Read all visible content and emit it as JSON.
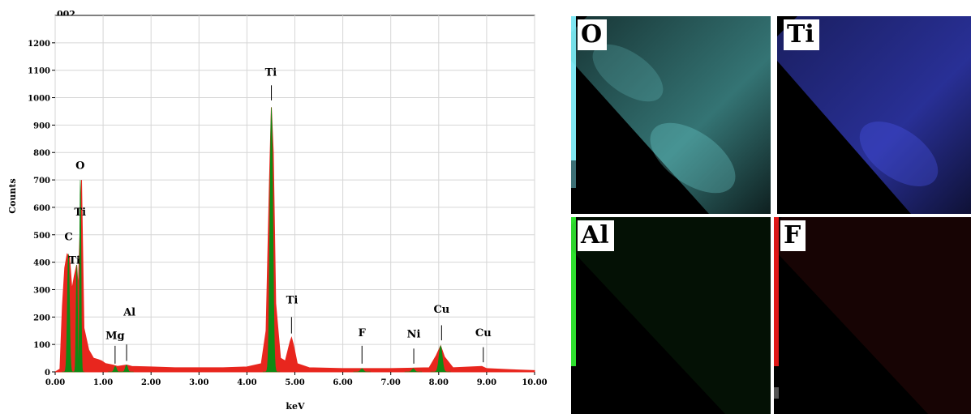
{
  "chart_data": {
    "type": "line",
    "title": "002",
    "xlabel": "keV",
    "ylabel": "Counts",
    "xlim": [
      0,
      10
    ],
    "ylim": [
      0,
      1300
    ],
    "xticks": [
      "0.00",
      "1.00",
      "2.00",
      "3.00",
      "4.00",
      "5.00",
      "6.00",
      "7.00",
      "8.00",
      "9.00",
      "10.00"
    ],
    "yticks": [
      "0",
      "100",
      "200",
      "300",
      "400",
      "500",
      "600",
      "700",
      "800",
      "900",
      "1000",
      "1100",
      "1200"
    ],
    "grid": true,
    "spectrum_color": "#e8261e",
    "peak_color": "#0f8a14",
    "spectrum": [
      {
        "x": 0.0,
        "y": 0
      },
      {
        "x": 0.1,
        "y": 10
      },
      {
        "x": 0.15,
        "y": 240
      },
      {
        "x": 0.2,
        "y": 380
      },
      {
        "x": 0.25,
        "y": 430
      },
      {
        "x": 0.3,
        "y": 420
      },
      {
        "x": 0.35,
        "y": 300
      },
      {
        "x": 0.4,
        "y": 350
      },
      {
        "x": 0.45,
        "y": 390
      },
      {
        "x": 0.48,
        "y": 300
      },
      {
        "x": 0.52,
        "y": 520
      },
      {
        "x": 0.55,
        "y": 700
      },
      {
        "x": 0.6,
        "y": 160
      },
      {
        "x": 0.7,
        "y": 80
      },
      {
        "x": 0.8,
        "y": 50
      },
      {
        "x": 0.9,
        "y": 45
      },
      {
        "x": 0.97,
        "y": 40
      },
      {
        "x": 1.05,
        "y": 30
      },
      {
        "x": 1.2,
        "y": 25
      },
      {
        "x": 1.3,
        "y": 20
      },
      {
        "x": 1.49,
        "y": 25
      },
      {
        "x": 1.6,
        "y": 20
      },
      {
        "x": 2.0,
        "y": 18
      },
      {
        "x": 2.5,
        "y": 15
      },
      {
        "x": 3.0,
        "y": 15
      },
      {
        "x": 3.5,
        "y": 15
      },
      {
        "x": 4.0,
        "y": 18
      },
      {
        "x": 4.3,
        "y": 30
      },
      {
        "x": 4.4,
        "y": 150
      },
      {
        "x": 4.47,
        "y": 700
      },
      {
        "x": 4.51,
        "y": 965
      },
      {
        "x": 4.55,
        "y": 800
      },
      {
        "x": 4.6,
        "y": 250
      },
      {
        "x": 4.7,
        "y": 50
      },
      {
        "x": 4.8,
        "y": 40
      },
      {
        "x": 4.9,
        "y": 110
      },
      {
        "x": 4.93,
        "y": 125
      },
      {
        "x": 4.97,
        "y": 100
      },
      {
        "x": 5.05,
        "y": 30
      },
      {
        "x": 5.3,
        "y": 15
      },
      {
        "x": 6.0,
        "y": 12
      },
      {
        "x": 6.5,
        "y": 12
      },
      {
        "x": 7.0,
        "y": 12
      },
      {
        "x": 7.48,
        "y": 14
      },
      {
        "x": 7.8,
        "y": 15
      },
      {
        "x": 7.95,
        "y": 60
      },
      {
        "x": 8.04,
        "y": 95
      },
      {
        "x": 8.12,
        "y": 55
      },
      {
        "x": 8.3,
        "y": 15
      },
      {
        "x": 8.9,
        "y": 20
      },
      {
        "x": 9.0,
        "y": 12
      },
      {
        "x": 9.5,
        "y": 8
      },
      {
        "x": 10.0,
        "y": 5
      }
    ],
    "peaks": [
      {
        "element": "C",
        "center": 0.277,
        "height": 430,
        "width": 0.045
      },
      {
        "element": "O",
        "center": 0.525,
        "height": 700,
        "width": 0.03
      },
      {
        "element": "Ti",
        "center": 0.452,
        "height": 390,
        "width": 0.03
      },
      {
        "element": "Mg",
        "center": 1.254,
        "height": 20,
        "width": 0.05
      },
      {
        "element": "Al",
        "center": 1.487,
        "height": 25,
        "width": 0.05
      },
      {
        "element": "Ti",
        "center": 4.51,
        "height": 965,
        "width": 0.06
      },
      {
        "element": "F",
        "center": 6.4,
        "height": 12,
        "width": 0.06
      },
      {
        "element": "Ni",
        "center": 7.47,
        "height": 12,
        "width": 0.06
      },
      {
        "element": "Cu",
        "center": 8.04,
        "height": 95,
        "width": 0.07
      }
    ],
    "annotations": [
      {
        "label": "C",
        "x": 0.28,
        "y": 480,
        "marker": false
      },
      {
        "label": "O",
        "x": 0.52,
        "y": 740,
        "marker": false
      },
      {
        "label": "Ti",
        "x": 0.52,
        "y": 570,
        "marker": false
      },
      {
        "label": "Ti",
        "x": 0.4,
        "y": 395,
        "marker": false
      },
      {
        "label": "Al",
        "x": 1.55,
        "y": 205,
        "marker": false
      },
      {
        "label": "Mg",
        "x": 1.25,
        "y": 120,
        "marker": true,
        "marker_x": 1.25,
        "marker_top": 95,
        "marker_bottom": 30
      },
      {
        "label": "Al",
        "x": 1.49,
        "y": 0,
        "marker": true,
        "hide_label": true,
        "marker_x": 1.49,
        "marker_top": 100,
        "marker_bottom": 40
      },
      {
        "label": "Ti",
        "x": 4.5,
        "y": 1080,
        "marker": true,
        "marker_x": 4.51,
        "marker_top": 1045,
        "marker_bottom": 990
      },
      {
        "label": "Ti",
        "x": 4.94,
        "y": 250,
        "marker": true,
        "marker_x": 4.93,
        "marker_top": 200,
        "marker_bottom": 140
      },
      {
        "label": "F",
        "x": 6.4,
        "y": 130,
        "marker": true,
        "marker_x": 6.4,
        "marker_top": 95,
        "marker_bottom": 30
      },
      {
        "label": "Ni",
        "x": 7.48,
        "y": 125,
        "marker": true,
        "marker_x": 7.48,
        "marker_top": 85,
        "marker_bottom": 30
      },
      {
        "label": "Cu",
        "x": 8.06,
        "y": 215,
        "marker": true,
        "marker_x": 8.06,
        "marker_top": 170,
        "marker_bottom": 115
      },
      {
        "label": "Cu",
        "x": 8.93,
        "y": 130,
        "marker": true,
        "marker_x": 8.93,
        "marker_top": 90,
        "marker_bottom": 35
      }
    ]
  },
  "element_maps": [
    {
      "label": "O",
      "bar_color": "#7fe6f2",
      "glow_color": "#5fd3d3"
    },
    {
      "label": "Ti",
      "bar_color": "#000000",
      "glow_color": "#3a44d6"
    },
    {
      "label": "Al",
      "bar_color": "#2ee02e",
      "glow_color": "#1f8a2a"
    },
    {
      "label": "F",
      "bar_color": "#e01818",
      "glow_color": "#b02020"
    }
  ]
}
